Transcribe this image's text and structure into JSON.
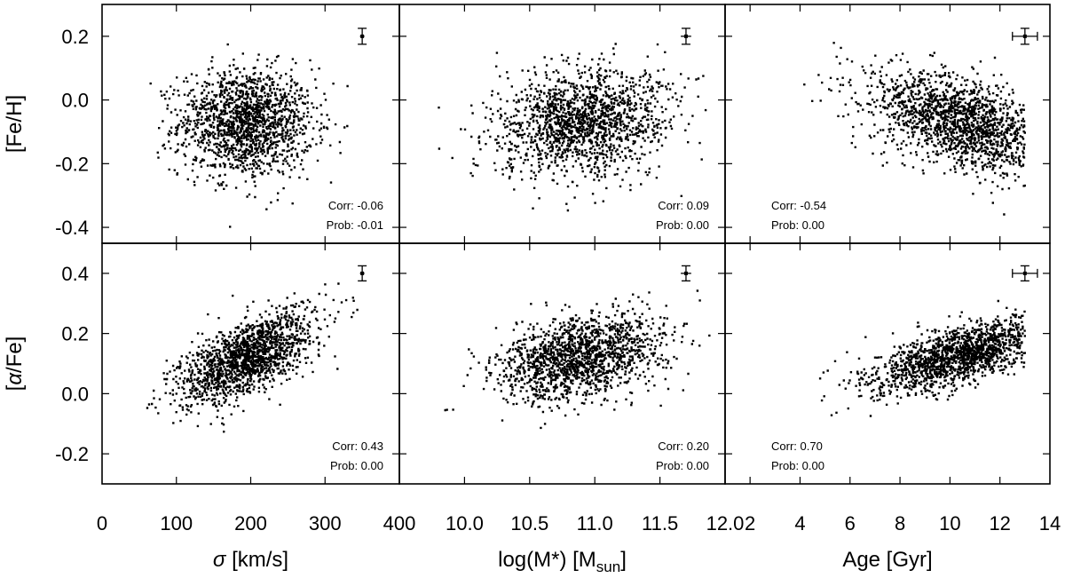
{
  "chart_data": {
    "type": "scatter",
    "layout": "2x3 panel grid with shared axes",
    "x_axes": [
      {
        "label_symbol": "σ",
        "label_text": " [km/s]",
        "lim": [
          0,
          400
        ],
        "ticks": [
          0,
          100,
          200,
          300,
          400
        ],
        "tick_labels": [
          "0",
          "100",
          "200",
          "300",
          "400"
        ]
      },
      {
        "label_text": "log(M*) [M",
        "label_sub": "sun",
        "label_close": "]",
        "lim": [
          9.5,
          12.0
        ],
        "ticks": [
          10.0,
          10.5,
          11.0,
          11.5,
          12.0
        ],
        "tick_labels": [
          "10.0",
          "10.5",
          "11.0",
          "11.5",
          "12.0"
        ]
      },
      {
        "label_text": "Age [Gyr]",
        "lim": [
          1,
          14
        ],
        "ticks": [
          2,
          4,
          6,
          8,
          10,
          12,
          14
        ],
        "tick_labels": [
          "2",
          "4",
          "6",
          "8",
          "10",
          "12",
          "14"
        ]
      }
    ],
    "y_axes": [
      {
        "label_text": "[Fe/H]",
        "lim": [
          -0.45,
          0.3
        ],
        "ticks": [
          0.2,
          0.0,
          -0.2,
          -0.4
        ],
        "tick_labels": [
          "0.2",
          "0.0",
          "-0.2",
          "-0.4"
        ]
      },
      {
        "label_open": "[",
        "label_symbol": "α",
        "label_text": "/Fe]",
        "lim": [
          -0.3,
          0.5
        ],
        "ticks": [
          0.4,
          0.2,
          0.0,
          -0.2
        ],
        "tick_labels": [
          "0.4",
          "0.2",
          "0.0",
          "-0.2"
        ]
      }
    ],
    "panels": [
      {
        "row": 0,
        "col": 0,
        "corr": "Corr: -0.06",
        "prob": "Prob: -0.01",
        "annot_pos": "bottom-right",
        "errorbar": {
          "x": 350,
          "y": 0.2,
          "xerr": 3,
          "yerr": 0.025
        },
        "cloud": {
          "x_center": 195,
          "x_spread": 45,
          "x_min": 60,
          "x_max": 370,
          "slope": 0.0,
          "y_at_center": -0.07,
          "y_spread": 0.085
        }
      },
      {
        "row": 0,
        "col": 1,
        "corr": "Corr: 0.09",
        "prob": "Prob: 0.00",
        "annot_pos": "bottom-right",
        "errorbar": {
          "x": 11.7,
          "y": 0.2,
          "xerr": 0.04,
          "yerr": 0.025
        },
        "cloud": {
          "x_center": 10.9,
          "x_spread": 0.32,
          "x_min": 9.6,
          "x_max": 11.9,
          "slope": 0.04,
          "y_at_center": -0.07,
          "y_spread": 0.085
        }
      },
      {
        "row": 0,
        "col": 2,
        "corr": "Corr: -0.54",
        "prob": "Prob: 0.00",
        "annot_pos": "bottom-left",
        "errorbar": {
          "x": 13.0,
          "y": 0.2,
          "xerr": 0.5,
          "yerr": 0.025
        },
        "cloud": {
          "x_center": 10.5,
          "x_spread": 1.8,
          "x_min": 3.0,
          "x_max": 13.0,
          "slope": -0.022,
          "y_at_center": -0.07,
          "y_spread": 0.07
        }
      },
      {
        "row": 1,
        "col": 0,
        "corr": "Corr: 0.43",
        "prob": "Prob: 0.00",
        "annot_pos": "bottom-right",
        "errorbar": {
          "x": 350,
          "y": 0.4,
          "xerr": 3,
          "yerr": 0.025
        },
        "cloud": {
          "x_center": 195,
          "x_spread": 45,
          "x_min": 60,
          "x_max": 370,
          "slope": 0.0011,
          "y_at_center": 0.12,
          "y_spread": 0.06
        }
      },
      {
        "row": 1,
        "col": 1,
        "corr": "Corr: 0.20",
        "prob": "Prob: 0.00",
        "annot_pos": "bottom-right",
        "errorbar": {
          "x": 11.7,
          "y": 0.4,
          "xerr": 0.04,
          "yerr": 0.025
        },
        "cloud": {
          "x_center": 10.9,
          "x_spread": 0.32,
          "x_min": 9.6,
          "x_max": 11.9,
          "slope": 0.07,
          "y_at_center": 0.12,
          "y_spread": 0.065
        }
      },
      {
        "row": 1,
        "col": 2,
        "corr": "Corr: 0.70",
        "prob": "Prob: 0.00",
        "annot_pos": "bottom-left",
        "errorbar": {
          "x": 13.0,
          "y": 0.4,
          "xerr": 0.5,
          "yerr": 0.025
        },
        "cloud": {
          "x_center": 10.5,
          "x_spread": 1.8,
          "x_min": 2.5,
          "x_max": 13.0,
          "slope": 0.022,
          "y_at_center": 0.13,
          "y_spread": 0.045
        }
      }
    ],
    "points_per_panel": 1600,
    "marker": "small filled squares",
    "grid": false,
    "legend": "none",
    "colors": {
      "ink": "#000000",
      "background": "#ffffff"
    }
  }
}
